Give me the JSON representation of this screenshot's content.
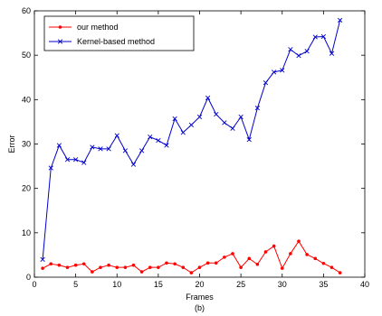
{
  "chart_data": {
    "type": "line",
    "title": "",
    "xlabel": "Frames",
    "ylabel": "Error",
    "caption": "(b)",
    "xlim": [
      0,
      40
    ],
    "ylim": [
      0,
      60
    ],
    "xticks": [
      0,
      5,
      10,
      15,
      20,
      25,
      30,
      35,
      40
    ],
    "yticks": [
      0,
      10,
      20,
      30,
      40,
      50,
      60
    ],
    "grid": false,
    "legend_position": "top-left",
    "x": [
      1,
      2,
      3,
      4,
      5,
      6,
      7,
      8,
      9,
      10,
      11,
      12,
      13,
      14,
      15,
      16,
      17,
      18,
      19,
      20,
      21,
      22,
      23,
      24,
      25,
      26,
      27,
      28,
      29,
      30,
      31,
      32,
      33,
      34,
      35,
      36,
      37
    ],
    "series": [
      {
        "name": "our method",
        "color": "#ff0000",
        "marker": "dot",
        "values": [
          2.0,
          3.0,
          2.7,
          2.2,
          2.7,
          3.0,
          1.2,
          2.2,
          2.7,
          2.2,
          2.2,
          2.7,
          1.2,
          2.2,
          2.2,
          3.2,
          3.0,
          2.2,
          1.0,
          2.2,
          3.2,
          3.2,
          4.5,
          5.3,
          2.2,
          4.2,
          2.9,
          5.7,
          7.0,
          2.0,
          5.3,
          8.1,
          5.1,
          4.2,
          3.1,
          2.2,
          1.0
        ]
      },
      {
        "name": "Kernel-based method",
        "color": "#0000cc",
        "marker": "x",
        "values": [
          4.0,
          24.6,
          29.7,
          26.5,
          26.5,
          25.8,
          29.3,
          28.9,
          28.9,
          31.9,
          28.5,
          25.4,
          28.5,
          31.6,
          30.8,
          29.7,
          35.7,
          32.6,
          34.3,
          36.1,
          40.4,
          36.7,
          34.8,
          33.5,
          36.1,
          31.0,
          38.1,
          43.8,
          46.2,
          46.6,
          51.3,
          49.9,
          50.9,
          54.1,
          54.2,
          50.4,
          57.9
        ]
      }
    ]
  }
}
